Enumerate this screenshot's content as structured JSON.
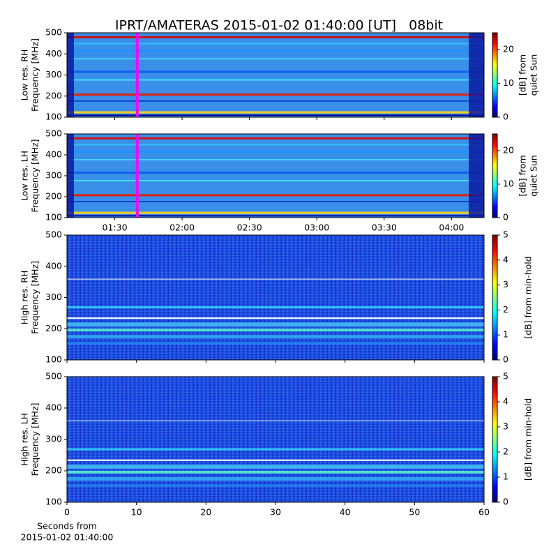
{
  "chart_data": [
    {
      "type": "spectrogram",
      "title": "IPRT/AMATERAS 2015-01-02 01:40:00 [UT]   08bit",
      "ylabel": [
        "Low res. RH",
        "Frequency [MHz]"
      ],
      "ylim": [
        100,
        500
      ],
      "yticks": [
        100,
        200,
        300,
        400,
        500
      ],
      "xlim": [
        68.7,
        254.5
      ],
      "xticks": [
        90,
        120,
        150,
        180,
        210,
        240
      ],
      "show_xtick_labels": false,
      "marker_x": 100,
      "marker_color": "#ff00ff",
      "clim": [
        0,
        25
      ],
      "cticks": [
        0,
        10,
        20
      ],
      "clabel": [
        "[dB] from",
        "quiet Sun"
      ]
    },
    {
      "type": "spectrogram",
      "ylabel": [
        "Low res. LH",
        "Frequency [MHz]"
      ],
      "ylim": [
        100,
        500
      ],
      "yticks": [
        100,
        200,
        300,
        400,
        500
      ],
      "xlim": [
        68.7,
        254.5
      ],
      "xticks": [
        {
          "value": 90,
          "label": "01:30"
        },
        {
          "value": 120,
          "label": "02:00"
        },
        {
          "value": 150,
          "label": "02:30"
        },
        {
          "value": 180,
          "label": "03:00"
        },
        {
          "value": 210,
          "label": "03:30"
        },
        {
          "value": 240,
          "label": "04:00"
        }
      ],
      "show_xtick_labels": true,
      "marker_x": 100,
      "marker_color": "#ff00ff",
      "clim": [
        0,
        25
      ],
      "cticks": [
        0,
        10,
        20
      ],
      "clabel": [
        "[dB] from",
        "quiet Sun"
      ]
    },
    {
      "type": "spectrogram",
      "ylabel": [
        "High res. RH",
        "Frequency [MHz]"
      ],
      "ylim": [
        100,
        500
      ],
      "yticks": [
        100,
        200,
        300,
        400,
        500
      ],
      "xlim": [
        0,
        60
      ],
      "xticks": [
        0,
        10,
        20,
        30,
        40,
        50,
        60
      ],
      "show_xtick_labels": false,
      "clim": [
        0,
        5
      ],
      "cticks": [
        0,
        1,
        2,
        3,
        4,
        5
      ],
      "clabel": [
        "[dB] from min-hold"
      ]
    },
    {
      "type": "spectrogram",
      "ylabel": [
        "High res. LH",
        "Frequency [MHz]"
      ],
      "ylim": [
        100,
        500
      ],
      "yticks": [
        100,
        200,
        300,
        400,
        500
      ],
      "xlim": [
        0,
        60
      ],
      "xticks": [
        0,
        10,
        20,
        30,
        40,
        50,
        60
      ],
      "show_xtick_labels": true,
      "xlabel": [
        "Seconds from",
        "2015-01-02 01:40:00"
      ],
      "clim": [
        0,
        5
      ],
      "cticks": [
        0,
        1,
        2,
        3,
        4,
        5
      ],
      "clabel": [
        "[dB] from min-hold"
      ]
    }
  ]
}
